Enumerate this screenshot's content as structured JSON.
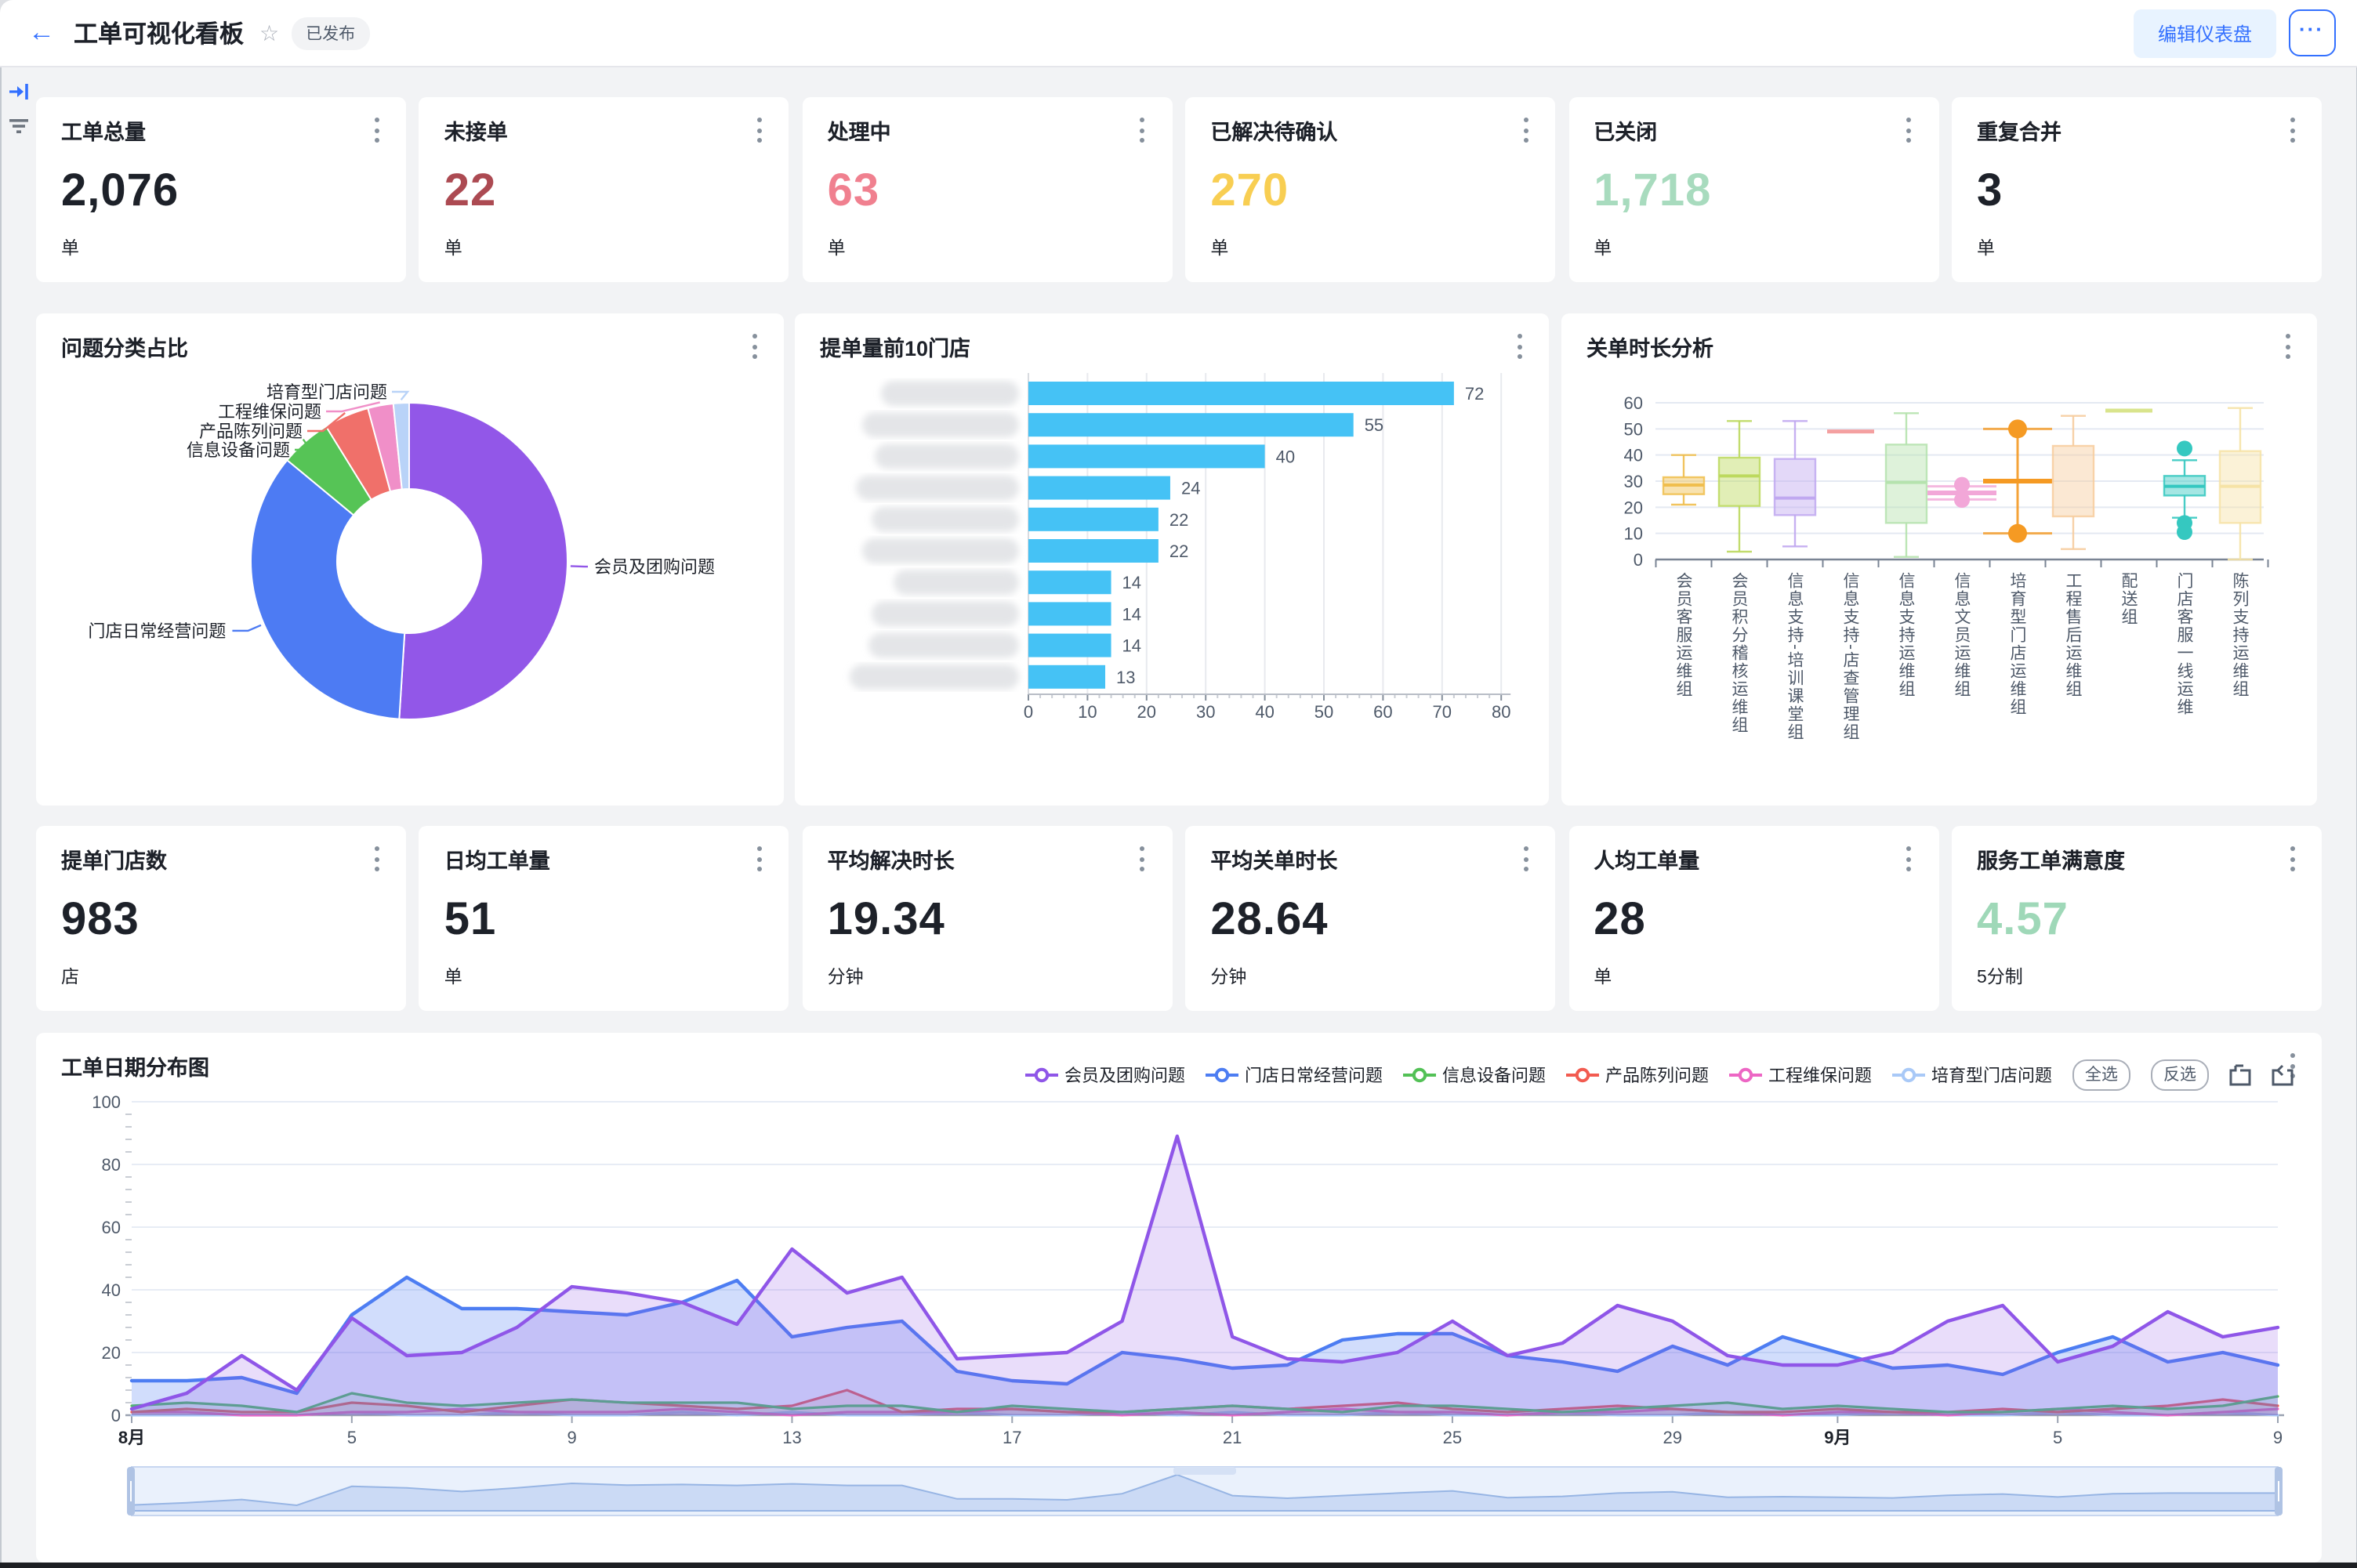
{
  "header": {
    "back_icon": "←",
    "title": "工单可视化看板",
    "star_icon": "☆",
    "status_badge": "已发布",
    "edit_button": "编辑仪表盘",
    "more_button": "···"
  },
  "left_rail": {
    "icons": [
      "panel-collapse-icon",
      "filter-icon"
    ]
  },
  "kpi_row_top": [
    {
      "title": "工单总量",
      "value": "2,076",
      "unit": "单",
      "color": "#1D2129"
    },
    {
      "title": "未接单",
      "value": "22",
      "unit": "单",
      "color": "#AC4A52"
    },
    {
      "title": "处理中",
      "value": "63",
      "unit": "单",
      "color": "#F0808F"
    },
    {
      "title": "已解决待确认",
      "value": "270",
      "unit": "单",
      "color": "#F8CE52"
    },
    {
      "title": "已关闭",
      "value": "1,718",
      "unit": "单",
      "color": "#A8DBBE"
    },
    {
      "title": "重复合并",
      "value": "3",
      "unit": "单",
      "color": "#1D2129"
    }
  ],
  "kpi_row_bottom": [
    {
      "title": "提单门店数",
      "value": "983",
      "unit": "店",
      "color": "#1D2129"
    },
    {
      "title": "日均工单量",
      "value": "51",
      "unit": "单",
      "color": "#1D2129"
    },
    {
      "title": "平均解决时长",
      "value": "19.34",
      "unit": "分钟",
      "color": "#1D2129"
    },
    {
      "title": "平均关单时长",
      "value": "28.64",
      "unit": "分钟",
      "color": "#1D2129"
    },
    {
      "title": "人均工单量",
      "value": "28",
      "unit": "单",
      "color": "#1D2129"
    },
    {
      "title": "服务工单满意度",
      "value": "4.57",
      "unit": "5分制",
      "color": "#9FD8B8"
    }
  ],
  "chart_data": [
    {
      "type": "pie",
      "title": "问题分类占比",
      "inner_radius_ratio": 0.46,
      "slices": [
        {
          "label": "会员及团购问题",
          "pct": 51.0,
          "color": "#9257E8"
        },
        {
          "label": "门店日常经营问题",
          "pct": 35.0,
          "color": "#4D7BF3"
        },
        {
          "label": "信息设备问题",
          "pct": 5.2,
          "color": "#56C456"
        },
        {
          "label": "产品陈列问题",
          "pct": 4.6,
          "color": "#F0706A"
        },
        {
          "label": "工程维保问题",
          "pct": 2.6,
          "color": "#F08FC8"
        },
        {
          "label": "培育型门店问题",
          "pct": 1.6,
          "color": "#B9D3F8"
        }
      ]
    },
    {
      "type": "bar",
      "title": "提单量前10门店",
      "orientation": "horizontal",
      "store_names_redacted": true,
      "values": [
        72,
        55,
        40,
        24,
        22,
        22,
        14,
        14,
        14,
        13
      ],
      "xlim": [
        0,
        80
      ],
      "x_ticks": [
        0,
        10,
        20,
        30,
        40,
        50,
        60,
        70,
        80
      ],
      "bar_color": "#45C2F5"
    },
    {
      "type": "box",
      "title": "关单时长分析",
      "ylim": [
        0,
        60
      ],
      "y_ticks": [
        0,
        10,
        20,
        30,
        40,
        50,
        60
      ],
      "categories": [
        {
          "name": "会员客服运维组",
          "color": "#F0BE4E",
          "min": 21,
          "q1": 25,
          "med": 28.5,
          "q3": 31.5,
          "max": 40,
          "outliers": []
        },
        {
          "name": "会员积分稽核运维组",
          "color": "#BCD95E",
          "min": 3,
          "q1": 20.5,
          "med": 32,
          "q3": 39,
          "max": 53,
          "outliers": []
        },
        {
          "name": "信息支持-培训课堂组",
          "color": "#C0A8F0",
          "min": 5,
          "q1": 17,
          "med": 23.5,
          "q3": 38.5,
          "max": 53,
          "outliers": []
        },
        {
          "name": "信息支持-店查管理组",
          "color": "#F4A0A0",
          "min": 49,
          "q1": 49,
          "med": 49,
          "q3": 49,
          "max": 49,
          "outliers": []
        },
        {
          "name": "信息支持运维组",
          "color": "#B5E3AE",
          "min": 1,
          "q1": 14,
          "med": 29.5,
          "q3": 44,
          "max": 56,
          "outliers": []
        },
        {
          "name": "信息文员运维组",
          "color": "#F2A7D8",
          "min": 23,
          "q1": 24.8,
          "med": 25.5,
          "q3": 26.4,
          "max": 28,
          "outliers": [
            22.8,
            28.6
          ]
        },
        {
          "name": "培育型门店运维组",
          "color": "#F59A23",
          "min": 10,
          "q1": 29.6,
          "med": 30,
          "q3": 30.4,
          "max": 50,
          "outliers": [
            10,
            50
          ]
        },
        {
          "name": "工程售后运维组",
          "color": "#F7CD9E",
          "min": 4,
          "q1": 16.5,
          "med": null,
          "q3": 43.5,
          "max": 55,
          "outliers": []
        },
        {
          "name": "配送组",
          "color": "#D9E48C",
          "min": 57,
          "q1": 57,
          "med": 57,
          "q3": 57,
          "max": 57,
          "outliers": []
        },
        {
          "name": "门店客服一线运维",
          "color": "#35C8C0",
          "min": 16,
          "q1": 24.5,
          "med": 28,
          "q3": 32,
          "max": 38,
          "outliers": [
            42.5,
            14,
            10.5
          ]
        },
        {
          "name": "陈列支持运维组",
          "color": "#F6E3A6",
          "min": 0,
          "q1": 14,
          "med": 28,
          "q3": 41.5,
          "max": 58,
          "outliers": []
        }
      ]
    },
    {
      "type": "area",
      "title": "工单日期分布图",
      "ylim": [
        0,
        100
      ],
      "y_ticks": [
        0,
        20,
        40,
        60,
        80,
        100
      ],
      "x_tick_labels": [
        "8月",
        "5",
        "9",
        "13",
        "17",
        "21",
        "25",
        "29",
        "9月",
        "5",
        "9"
      ],
      "x_tick_indices": [
        0,
        4,
        8,
        12,
        16,
        20,
        24,
        28,
        31,
        35,
        39
      ],
      "legend_controls": [
        "全选",
        "反选"
      ],
      "toolbox_icons": [
        "datazoom-icon",
        "restore-icon"
      ],
      "series": [
        {
          "name": "会员及团购问题",
          "color": "#8F56E8",
          "values": [
            2,
            7,
            19,
            8,
            31,
            19,
            20,
            28,
            41,
            39,
            36,
            29,
            53,
            39,
            44,
            18,
            19,
            20,
            30,
            89,
            25,
            18,
            17,
            20,
            30,
            19,
            23,
            35,
            30,
            19,
            16,
            16,
            20,
            30,
            35,
            17,
            22,
            33,
            25,
            28
          ]
        },
        {
          "name": "门店日常经营问题",
          "color": "#4D7DF2",
          "values": [
            11,
            11,
            12,
            7,
            32,
            44,
            34,
            34,
            33,
            32,
            36,
            43,
            25,
            28,
            30,
            14,
            11,
            10,
            20,
            18,
            15,
            16,
            24,
            26,
            26,
            19,
            17,
            14,
            22,
            16,
            25,
            20,
            15,
            16,
            13,
            20,
            25,
            17,
            20,
            16
          ]
        },
        {
          "name": "信息设备问题",
          "color": "#53C156",
          "values": [
            3,
            4,
            3,
            1,
            7,
            4,
            3,
            4,
            5,
            4,
            4,
            4,
            2,
            3,
            3,
            1,
            3,
            2,
            1,
            2,
            3,
            2,
            1,
            3,
            3,
            2,
            1,
            2,
            3,
            4,
            2,
            3,
            2,
            1,
            1,
            2,
            3,
            2,
            3,
            6
          ]
        },
        {
          "name": "产品陈列问题",
          "color": "#F25B50",
          "values": [
            1,
            2,
            1,
            1,
            4,
            3,
            1,
            3,
            5,
            4,
            3,
            2,
            3,
            8,
            1,
            2,
            2,
            1,
            1,
            2,
            3,
            2,
            3,
            4,
            2,
            1,
            2,
            3,
            2,
            1,
            1,
            2,
            1,
            1,
            2,
            1,
            2,
            3,
            5,
            3
          ]
        },
        {
          "name": "工程维保问题",
          "color": "#ED66C4",
          "values": [
            1,
            1,
            0,
            0,
            1,
            1,
            2,
            1,
            1,
            1,
            2,
            1,
            0,
            1,
            1,
            1,
            2,
            1,
            0,
            1,
            0,
            1,
            2,
            1,
            1,
            0,
            1,
            1,
            2,
            1,
            0,
            1,
            1,
            0,
            1,
            2,
            1,
            0,
            1,
            2
          ]
        },
        {
          "name": "培育型门店问题",
          "color": "#A9C9F7",
          "values": [
            0,
            0,
            0,
            0,
            1,
            0,
            0,
            1,
            0,
            0,
            1,
            0,
            1,
            0,
            0,
            1,
            0,
            0,
            1,
            0,
            1,
            0,
            0,
            1,
            0,
            0,
            1,
            0,
            0,
            1,
            0,
            0,
            1,
            0,
            0,
            1,
            0,
            0,
            1,
            0
          ]
        }
      ]
    }
  ]
}
